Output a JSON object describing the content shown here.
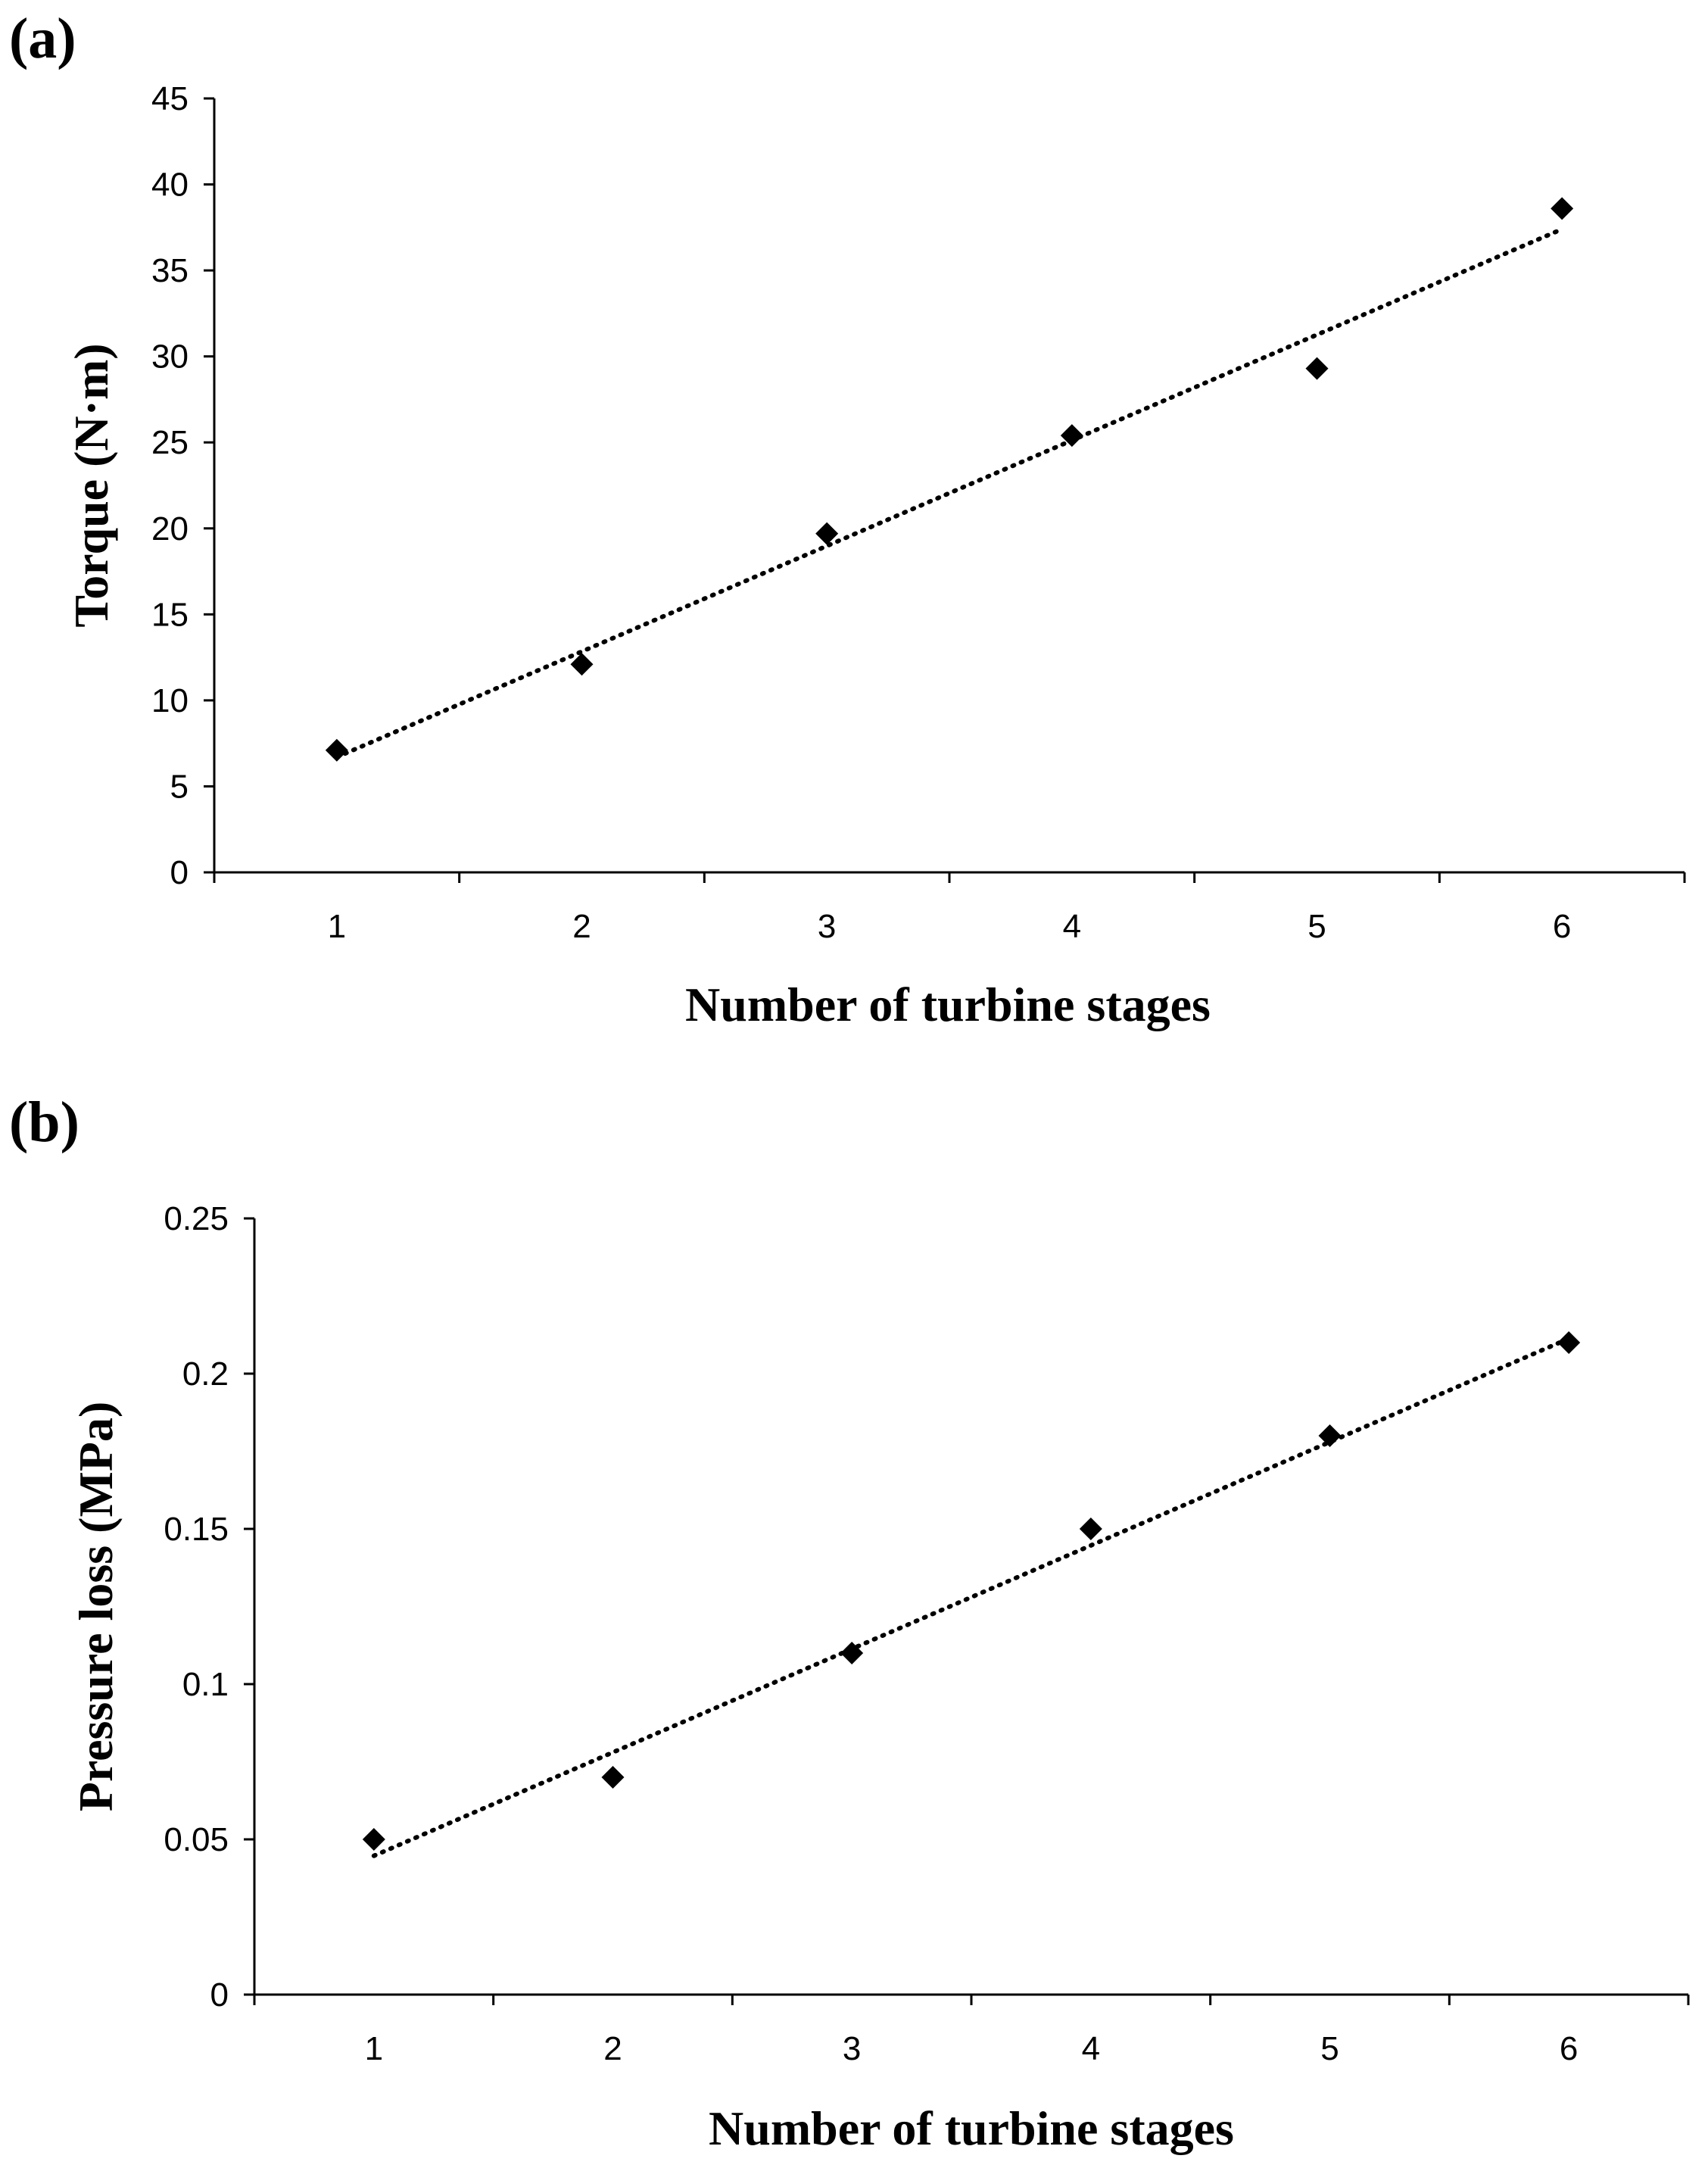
{
  "chart_data": [
    {
      "panel_label": "(a)",
      "type": "scatter",
      "xlabel": "Number of turbine stages",
      "ylabel": "Torque (N·m)",
      "xlim": [
        0.5,
        6.5
      ],
      "ylim": [
        0,
        45
      ],
      "xticks": [
        "1",
        "2",
        "3",
        "4",
        "5",
        "6"
      ],
      "yticks": [
        "0",
        "5",
        "10",
        "15",
        "20",
        "25",
        "30",
        "35",
        "40",
        "45"
      ],
      "x": [
        1,
        2,
        3,
        4,
        5,
        6
      ],
      "y": [
        7.1,
        12.1,
        19.7,
        25.4,
        29.3,
        38.6
      ],
      "trendline": {
        "type": "linear",
        "start": [
          1,
          6.7
        ],
        "end": [
          6,
          37.4
        ],
        "style": "dotted"
      },
      "marker": "diamond",
      "grid": false
    },
    {
      "panel_label": "(b)",
      "type": "scatter",
      "xlabel": "Number of turbine stages",
      "ylabel": "Pressure loss (MPa)",
      "xlim": [
        0.5,
        6.5
      ],
      "ylim": [
        0,
        0.25
      ],
      "xticks": [
        "1",
        "2",
        "3",
        "4",
        "5",
        "6"
      ],
      "yticks": [
        "0",
        "0.05",
        "0.1",
        "0.15",
        "0.2",
        "0.25"
      ],
      "x": [
        1,
        2,
        3,
        4,
        5,
        6
      ],
      "y": [
        0.05,
        0.07,
        0.11,
        0.15,
        0.18,
        0.21
      ],
      "trendline": {
        "type": "linear",
        "start": [
          1,
          0.0447
        ],
        "end": [
          6,
          0.2113
        ],
        "style": "dotted"
      },
      "marker": "diamond",
      "grid": false
    }
  ]
}
